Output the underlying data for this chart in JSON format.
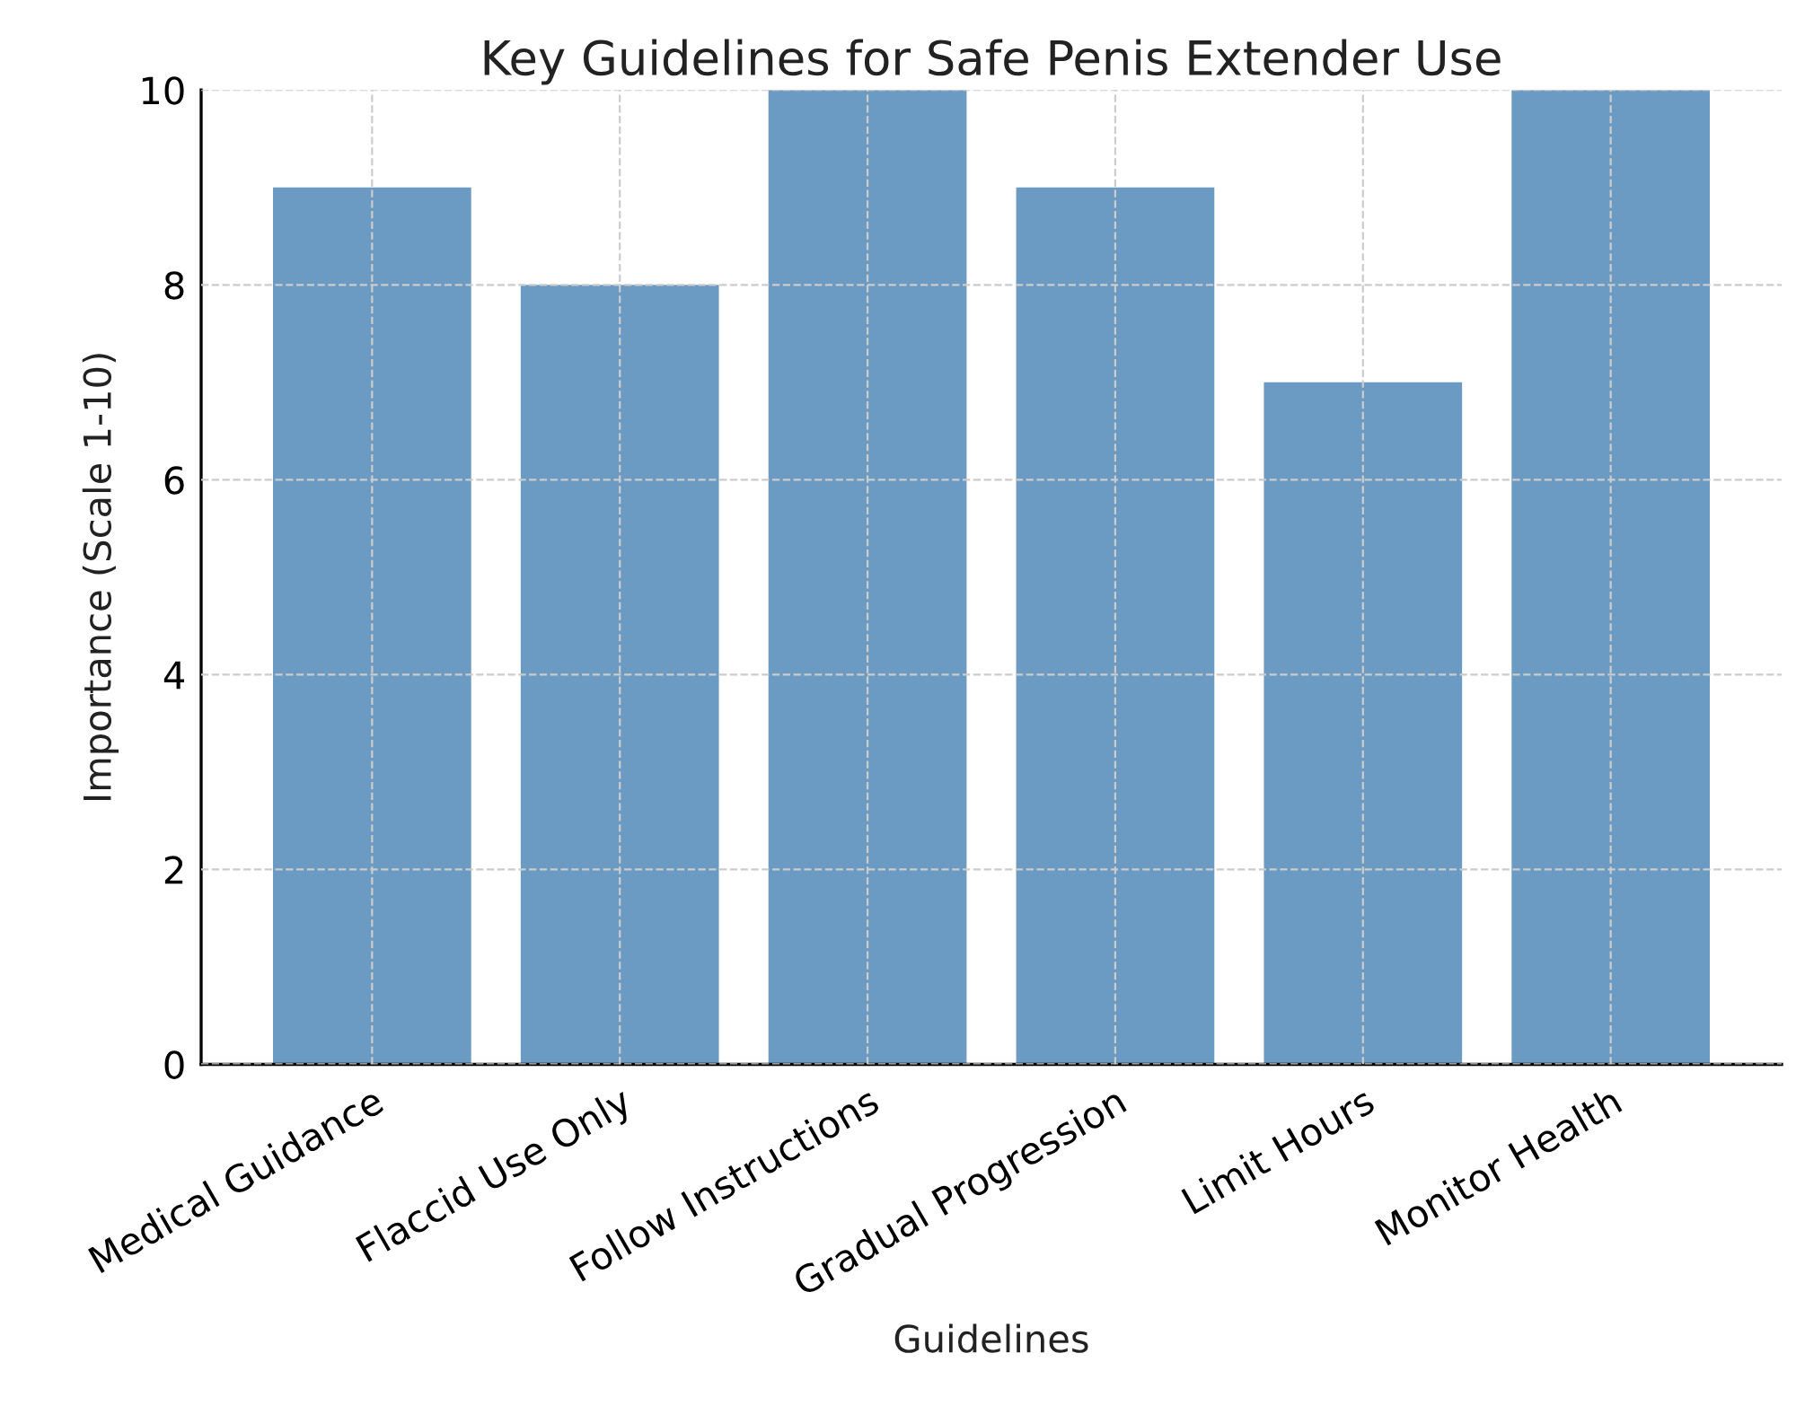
{
  "chart_data": {
    "type": "bar",
    "title": "Key Guidelines for Safe Penis Extender Use",
    "xlabel": "Guidelines",
    "ylabel": "Importance (Scale 1-10)",
    "categories": [
      "Medical Guidance",
      "Flaccid Use Only",
      "Follow Instructions",
      "Gradual Progression",
      "Limit Hours",
      "Monitor Health"
    ],
    "values": [
      9,
      8,
      10,
      9,
      7,
      10
    ],
    "color": "#6b9bc3",
    "ylim": [
      0,
      10
    ],
    "yticks": [
      0,
      2,
      4,
      6,
      8,
      10
    ],
    "grid": true
  }
}
